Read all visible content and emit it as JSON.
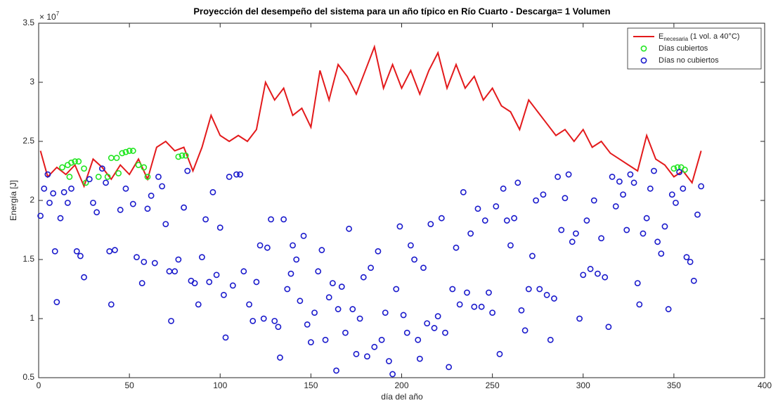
{
  "chart_data": {
    "type": "combo",
    "title": "Proyección del desempeño del sistema para un año típico en Río Cuarto - Descarga= 1 Volumen",
    "x_label": "día del año",
    "y_label": "Energía [J]",
    "y_exponent": {
      "base": "× 10",
      "power": "7"
    },
    "xlim": [
      0,
      400
    ],
    "xticks": [
      0,
      50,
      100,
      150,
      200,
      250,
      300,
      350,
      400
    ],
    "ylim": [
      0.5,
      3.5
    ],
    "yticks": [
      0.5,
      1,
      1.5,
      2,
      2.5,
      3,
      3.5
    ],
    "legend": "upper right",
    "series": [
      {
        "name": "E",
        "name_subscript": "necesaria",
        "name_note": "(1 vol. a 40°C)",
        "type": "line",
        "color": "#e31a1c",
        "x": [
          1,
          5,
          10,
          15,
          20,
          25,
          30,
          35,
          40,
          45,
          50,
          55,
          60,
          65,
          70,
          75,
          80,
          85,
          90,
          95,
          100,
          105,
          110,
          115,
          120,
          125,
          130,
          135,
          140,
          145,
          150,
          155,
          160,
          165,
          170,
          175,
          180,
          185,
          190,
          195,
          200,
          205,
          210,
          215,
          220,
          225,
          230,
          235,
          240,
          245,
          250,
          255,
          260,
          265,
          270,
          275,
          280,
          285,
          290,
          295,
          300,
          305,
          310,
          315,
          320,
          325,
          330,
          335,
          340,
          345,
          350,
          355,
          360,
          365
        ],
        "values": [
          2.42,
          2.2,
          2.28,
          2.22,
          2.3,
          2.12,
          2.35,
          2.28,
          2.18,
          2.3,
          2.22,
          2.35,
          2.18,
          2.45,
          2.5,
          2.42,
          2.45,
          2.25,
          2.45,
          2.72,
          2.55,
          2.5,
          2.55,
          2.5,
          2.6,
          3.0,
          2.85,
          2.95,
          2.72,
          2.78,
          2.62,
          3.1,
          2.85,
          3.15,
          3.05,
          2.9,
          3.1,
          3.3,
          2.95,
          3.15,
          2.95,
          3.1,
          2.9,
          3.1,
          3.25,
          2.95,
          3.15,
          2.95,
          3.05,
          2.85,
          2.95,
          2.8,
          2.75,
          2.6,
          2.85,
          2.75,
          2.65,
          2.55,
          2.6,
          2.5,
          2.6,
          2.45,
          2.5,
          2.4,
          2.35,
          2.3,
          2.25,
          2.55,
          2.35,
          2.3,
          2.2,
          2.25,
          2.15,
          2.42
        ]
      },
      {
        "name": "Días cubiertos",
        "type": "scatter",
        "color": "#22e622",
        "x": [
          13,
          16,
          17,
          18,
          20,
          22,
          25,
          26,
          33,
          38,
          40,
          43,
          44,
          46,
          48,
          50,
          52,
          55,
          58,
          60,
          77,
          79,
          81,
          350,
          352,
          354,
          356
        ],
        "values": [
          2.28,
          2.3,
          2.2,
          2.32,
          2.33,
          2.33,
          2.27,
          2.15,
          2.2,
          2.2,
          2.36,
          2.36,
          2.23,
          2.4,
          2.41,
          2.42,
          2.42,
          2.3,
          2.28,
          2.2,
          2.37,
          2.38,
          2.38,
          2.27,
          2.28,
          2.28,
          2.26
        ]
      },
      {
        "name": "Días no cubiertos",
        "type": "scatter",
        "color": "#1a1acc",
        "x": [
          1,
          3,
          5,
          6,
          8,
          9,
          10,
          12,
          14,
          16,
          18,
          21,
          23,
          25,
          28,
          30,
          32,
          35,
          37,
          39,
          40,
          42,
          45,
          48,
          52,
          54,
          57,
          58,
          60,
          62,
          64,
          66,
          68,
          70,
          72,
          73,
          75,
          77,
          80,
          82,
          84,
          86,
          88,
          90,
          92,
          94,
          96,
          98,
          100,
          102,
          103,
          105,
          107,
          109,
          111,
          113,
          116,
          118,
          120,
          122,
          124,
          126,
          128,
          130,
          132,
          133,
          135,
          137,
          139,
          140,
          142,
          144,
          146,
          148,
          150,
          152,
          154,
          156,
          158,
          160,
          162,
          164,
          165,
          167,
          169,
          171,
          173,
          175,
          177,
          179,
          181,
          183,
          185,
          187,
          189,
          191,
          193,
          195,
          197,
          199,
          201,
          203,
          205,
          207,
          209,
          210,
          212,
          214,
          216,
          218,
          220,
          222,
          224,
          226,
          228,
          230,
          232,
          234,
          236,
          238,
          240,
          242,
          244,
          246,
          248,
          250,
          252,
          254,
          256,
          258,
          260,
          262,
          264,
          266,
          268,
          270,
          272,
          274,
          276,
          278,
          280,
          282,
          284,
          286,
          288,
          290,
          292,
          294,
          296,
          298,
          300,
          302,
          304,
          306,
          308,
          310,
          312,
          314,
          316,
          318,
          320,
          322,
          324,
          326,
          328,
          330,
          331,
          333,
          335,
          337,
          339,
          341,
          343,
          345,
          347,
          349,
          351,
          353,
          355,
          357,
          359,
          361,
          363,
          365
        ],
        "values": [
          1.87,
          2.1,
          2.22,
          1.98,
          2.06,
          1.57,
          1.14,
          1.85,
          2.07,
          1.98,
          2.1,
          1.57,
          1.53,
          1.35,
          2.18,
          1.98,
          1.9,
          2.27,
          2.15,
          1.57,
          1.12,
          1.58,
          1.92,
          2.1,
          1.97,
          1.52,
          1.3,
          1.48,
          1.93,
          2.04,
          1.47,
          2.2,
          2.12,
          1.8,
          1.4,
          0.98,
          1.4,
          1.5,
          1.94,
          2.25,
          1.32,
          1.3,
          1.12,
          1.52,
          1.84,
          1.31,
          2.07,
          1.37,
          1.77,
          1.2,
          0.84,
          2.2,
          1.28,
          2.22,
          2.22,
          1.4,
          1.12,
          0.98,
          1.31,
          1.62,
          1.0,
          1.6,
          1.84,
          0.98,
          0.93,
          0.67,
          1.84,
          1.25,
          1.38,
          1.62,
          1.5,
          1.15,
          1.7,
          0.95,
          0.8,
          1.05,
          1.4,
          1.58,
          0.82,
          1.18,
          1.3,
          0.56,
          1.08,
          1.27,
          0.88,
          1.76,
          1.08,
          0.7,
          1.0,
          1.35,
          0.68,
          1.43,
          0.76,
          1.57,
          0.82,
          1.05,
          0.64,
          0.53,
          1.25,
          1.78,
          1.03,
          0.88,
          1.62,
          1.5,
          0.82,
          0.66,
          1.43,
          0.96,
          1.8,
          0.92,
          1.02,
          1.85,
          0.88,
          0.59,
          1.25,
          1.6,
          1.12,
          2.07,
          1.22,
          1.72,
          1.1,
          1.93,
          1.1,
          1.83,
          1.22,
          1.05,
          1.95,
          0.7,
          2.1,
          1.83,
          1.62,
          1.85,
          2.15,
          1.07,
          0.9,
          1.25,
          1.53,
          2.0,
          1.25,
          2.05,
          1.2,
          0.82,
          1.17,
          2.2,
          1.75,
          2.02,
          2.22,
          1.65,
          1.72,
          1.0,
          1.37,
          1.83,
          1.42,
          2.0,
          1.38,
          1.68,
          1.35,
          0.93,
          2.2,
          1.95,
          2.16,
          2.05,
          1.75,
          2.22,
          2.15,
          1.3,
          1.12,
          1.72,
          1.85,
          2.1,
          2.25,
          1.65,
          1.55,
          1.78,
          1.08,
          2.05,
          1.98,
          2.24,
          2.1,
          1.52,
          1.48,
          1.32,
          1.88,
          2.12
        ]
      }
    ]
  }
}
